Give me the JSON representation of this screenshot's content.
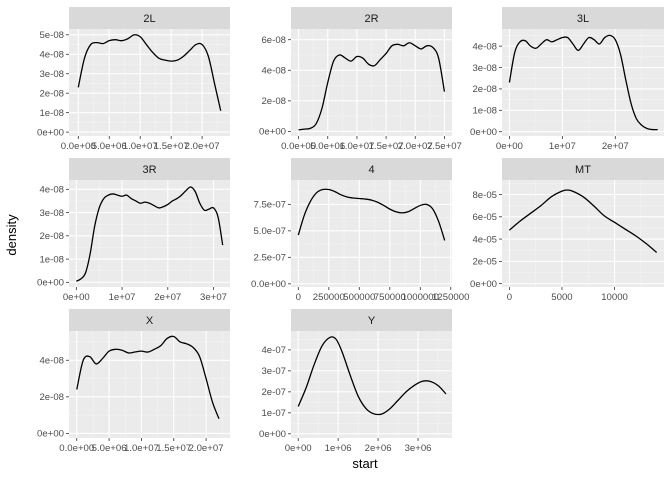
{
  "chart_data": {
    "type": "line",
    "xlabel": "start",
    "ylabel": "density",
    "panels": [
      {
        "name": "2L",
        "xlim": [
          -1500000,
          24500000
        ],
        "ylim": [
          -2e-09,
          5.3e-08
        ],
        "x_ticks": [
          0,
          5000000,
          10000000,
          15000000,
          20000000
        ],
        "x_tick_labels": [
          "0.0e+00",
          "5.0e+06",
          "1.0e+07",
          "1.5e+07",
          "2.0e+07"
        ],
        "y_ticks": [
          0,
          1e-08,
          2e-08,
          3e-08,
          4e-08,
          5e-08
        ],
        "y_tick_labels": [
          "0e+00",
          "1e-08",
          "2e-08",
          "3e-08",
          "4e-08",
          "5e-08"
        ],
        "x": [
          0,
          1000000,
          2000000,
          3000000,
          4000000,
          5000000,
          6000000,
          7000000,
          8000000,
          9000000,
          10000000,
          11000000,
          12000000,
          13000000,
          14000000,
          15000000,
          16000000,
          17000000,
          18000000,
          19000000,
          20000000,
          21000000,
          22000000,
          23000000
        ],
        "y": [
          2.3e-08,
          3.8e-08,
          4.5e-08,
          4.6e-08,
          4.55e-08,
          4.7e-08,
          4.75e-08,
          4.7e-08,
          4.8e-08,
          5e-08,
          4.9e-08,
          4.5e-08,
          4.1e-08,
          3.8e-08,
          3.7e-08,
          3.65e-08,
          3.7e-08,
          3.9e-08,
          4.2e-08,
          4.5e-08,
          4.5e-08,
          3.9e-08,
          2.5e-08,
          1.1e-08
        ]
      },
      {
        "name": "2R",
        "xlim": [
          -1300000,
          26300000
        ],
        "ylim": [
          -3e-09,
          6.7e-08
        ],
        "x_ticks": [
          0,
          5000000,
          10000000,
          15000000,
          20000000,
          25000000
        ],
        "x_tick_labels": [
          "0.0e+00",
          "5.0e+06",
          "1.0e+07",
          "1.5e+07",
          "2.0e+07",
          "2.5e+07"
        ],
        "y_ticks": [
          0,
          2e-08,
          4e-08,
          6e-08
        ],
        "y_tick_labels": [
          "0e+00",
          "2e-08",
          "4e-08",
          "6e-08"
        ],
        "x": [
          0,
          1000000,
          2000000,
          3000000,
          4000000,
          5000000,
          6000000,
          7000000,
          8000000,
          9000000,
          10000000,
          11000000,
          12000000,
          13000000,
          14000000,
          15000000,
          16000000,
          17000000,
          18000000,
          19000000,
          20000000,
          21000000,
          22000000,
          23000000,
          24000000,
          25000000
        ],
        "y": [
          1e-09,
          1.5e-09,
          2e-09,
          5e-09,
          1.5e-08,
          3.2e-08,
          4.6e-08,
          5e-08,
          4.8e-08,
          4.6e-08,
          4.9e-08,
          4.8e-08,
          4.4e-08,
          4.3e-08,
          4.7e-08,
          5.1e-08,
          5.6e-08,
          5.7e-08,
          5.6e-08,
          5.8e-08,
          5.6e-08,
          5.4e-08,
          5.6e-08,
          5.5e-08,
          4.8e-08,
          2.6e-08
        ]
      },
      {
        "name": "3L",
        "xlim": [
          -1400000,
          29200000
        ],
        "ylim": [
          -2e-09,
          4.8e-08
        ],
        "x_ticks": [
          0,
          10000000,
          20000000
        ],
        "x_tick_labels": [
          "0e+00",
          "1e+07",
          "2e+07"
        ],
        "y_ticks": [
          0,
          1e-08,
          2e-08,
          3e-08,
          4e-08
        ],
        "y_tick_labels": [
          "0e+00",
          "1e-08",
          "2e-08",
          "3e-08",
          "4e-08"
        ],
        "x": [
          0,
          1000000,
          2000000,
          3000000,
          4000000,
          5000000,
          6000000,
          7000000,
          8000000,
          9000000,
          10000000,
          11000000,
          12000000,
          13000000,
          14000000,
          15000000,
          16000000,
          17000000,
          18000000,
          19000000,
          20000000,
          21000000,
          22000000,
          23000000,
          24000000,
          25000000,
          26000000,
          27000000,
          28000000
        ],
        "y": [
          2.3e-08,
          3.7e-08,
          4.2e-08,
          4.25e-08,
          4e-08,
          3.9e-08,
          4.1e-08,
          4.3e-08,
          4.2e-08,
          4.3e-08,
          4.4e-08,
          4.4e-08,
          4.1e-08,
          3.8e-08,
          4.1e-08,
          4.4e-08,
          4.3e-08,
          4.1e-08,
          4.4e-08,
          4.5e-08,
          4.3e-08,
          3.6e-08,
          2.4e-08,
          1.3e-08,
          6e-09,
          3e-09,
          1.5e-09,
          1e-09,
          1e-09
        ]
      },
      {
        "name": "3R",
        "xlim": [
          -1600000,
          33600000
        ],
        "ylim": [
          -2e-09,
          4.4e-08
        ],
        "x_ticks": [
          0,
          10000000,
          20000000,
          30000000
        ],
        "x_tick_labels": [
          "0e+00",
          "1e+07",
          "2e+07",
          "3e+07"
        ],
        "y_ticks": [
          0,
          1e-08,
          2e-08,
          3e-08,
          4e-08
        ],
        "y_tick_labels": [
          "0e+00",
          "1e-08",
          "2e-08",
          "3e-08",
          "4e-08"
        ],
        "x": [
          0,
          1000000,
          2000000,
          3000000,
          4000000,
          5000000,
          6000000,
          7000000,
          8000000,
          9000000,
          10000000,
          11000000,
          12000000,
          13000000,
          14000000,
          15000000,
          16000000,
          17000000,
          18000000,
          19000000,
          20000000,
          21000000,
          22000000,
          23000000,
          24000000,
          25000000,
          26000000,
          27000000,
          28000000,
          29000000,
          30000000,
          31000000,
          32000000
        ],
        "y": [
          5e-10,
          1.5e-09,
          4e-09,
          1.2e-08,
          2.4e-08,
          3.2e-08,
          3.6e-08,
          3.75e-08,
          3.8e-08,
          3.75e-08,
          3.7e-08,
          3.75e-08,
          3.6e-08,
          3.5e-08,
          3.4e-08,
          3.45e-08,
          3.4e-08,
          3.3e-08,
          3.2e-08,
          3.25e-08,
          3.35e-08,
          3.5e-08,
          3.6e-08,
          3.75e-08,
          3.95e-08,
          4.1e-08,
          3.9e-08,
          3.4e-08,
          3.1e-08,
          3.15e-08,
          3.2e-08,
          2.8e-08,
          1.6e-08
        ]
      },
      {
        "name": "4",
        "xlim": [
          -60000,
          1260000
        ],
        "ylim": [
          -3e-08,
          9.8e-07
        ],
        "x_ticks": [
          0,
          250000,
          500000,
          750000,
          1000000,
          1250000
        ],
        "x_tick_labels": [
          "0",
          "250000",
          "500000",
          "750000",
          "1000000",
          "1250000"
        ],
        "y_ticks": [
          0,
          2.5e-07,
          5e-07,
          7.5e-07
        ],
        "y_tick_labels": [
          "0.0e+00",
          "2.5e-07",
          "5.0e-07",
          "7.5e-07"
        ],
        "x": [
          0,
          50000,
          100000,
          150000,
          200000,
          250000,
          300000,
          350000,
          400000,
          450000,
          500000,
          550000,
          600000,
          650000,
          700000,
          750000,
          800000,
          850000,
          900000,
          950000,
          1000000,
          1050000,
          1100000,
          1150000,
          1200000
        ],
        "y": [
          4.6e-07,
          6.5e-07,
          7.8e-07,
          8.6e-07,
          8.9e-07,
          8.9e-07,
          8.7e-07,
          8.4e-07,
          8.2e-07,
          8.1e-07,
          8.05e-07,
          8e-07,
          7.9e-07,
          7.7e-07,
          7.4e-07,
          7.05e-07,
          6.8e-07,
          6.7e-07,
          6.8e-07,
          7.1e-07,
          7.4e-07,
          7.5e-07,
          7.1e-07,
          5.9e-07,
          4.1e-07
        ]
      },
      {
        "name": "MT",
        "xlim": [
          -700,
          14700
        ],
        "ylim": [
          -3e-06,
          9.3e-05
        ],
        "x_ticks": [
          0,
          5000,
          10000
        ],
        "x_tick_labels": [
          "0",
          "5000",
          "10000"
        ],
        "y_ticks": [
          0,
          2e-05,
          4e-05,
          6e-05,
          8e-05
        ],
        "y_tick_labels": [
          "0e+00",
          "2e-05",
          "4e-05",
          "6e-05",
          "8e-05"
        ],
        "x": [
          0,
          1000,
          2000,
          3000,
          4000,
          5000,
          5500,
          6000,
          7000,
          8000,
          9000,
          10000,
          11000,
          12000,
          13000,
          14000
        ],
        "y": [
          4.8e-05,
          5.6e-05,
          6.3e-05,
          7e-05,
          7.8e-05,
          8.3e-05,
          8.4e-05,
          8.3e-05,
          7.8e-05,
          7e-05,
          6.1e-05,
          5.5e-05,
          4.9e-05,
          4.3e-05,
          3.6e-05,
          2.8e-05
        ]
      },
      {
        "name": "X",
        "xlim": [
          -1200000,
          23700000
        ],
        "ylim": [
          -2.5e-09,
          5.6e-08
        ],
        "x_ticks": [
          0,
          5000000,
          10000000,
          15000000,
          20000000
        ],
        "x_tick_labels": [
          "0.0e+00",
          "5.0e+06",
          "1.0e+07",
          "1.5e+07",
          "2.0e+07"
        ],
        "y_ticks": [
          0,
          2e-08,
          4e-08
        ],
        "y_tick_labels": [
          "0e+00",
          "2e-08",
          "4e-08"
        ],
        "x": [
          0,
          1000000,
          2000000,
          3000000,
          4000000,
          5000000,
          6000000,
          7000000,
          8000000,
          9000000,
          10000000,
          11000000,
          12000000,
          13000000,
          14000000,
          15000000,
          16000000,
          17000000,
          18000000,
          19000000,
          20000000,
          21000000,
          22000000
        ],
        "y": [
          2.4e-08,
          4e-08,
          4.2e-08,
          3.8e-08,
          4.1e-08,
          4.5e-08,
          4.6e-08,
          4.55e-08,
          4.4e-08,
          4.45e-08,
          4.5e-08,
          4.45e-08,
          4.6e-08,
          4.8e-08,
          5.2e-08,
          5.3e-08,
          5e-08,
          4.9e-08,
          4.7e-08,
          4.2e-08,
          3e-08,
          1.7e-08,
          8e-09
        ]
      },
      {
        "name": "Y",
        "xlim": [
          -180000,
          3850000
        ],
        "ylim": [
          -2e-08,
          4.9e-07
        ],
        "x_ticks": [
          0,
          1000000,
          2000000,
          3000000
        ],
        "x_tick_labels": [
          "0e+00",
          "1e+06",
          "2e+06",
          "3e+06"
        ],
        "y_ticks": [
          0,
          1e-07,
          2e-07,
          3e-07,
          4e-07
        ],
        "y_tick_labels": [
          "0e+00",
          "1e-07",
          "2e-07",
          "3e-07",
          "4e-07"
        ],
        "x": [
          0,
          200000,
          400000,
          600000,
          800000,
          950000,
          1100000,
          1300000,
          1500000,
          1700000,
          1900000,
          2100000,
          2300000,
          2500000,
          2700000,
          2900000,
          3100000,
          3300000,
          3500000,
          3700000
        ],
        "y": [
          1.3e-07,
          2.2e-07,
          3.3e-07,
          4.2e-07,
          4.6e-07,
          4.5e-07,
          3.9e-07,
          2.8e-07,
          1.8e-07,
          1.2e-07,
          9.5e-08,
          9.5e-08,
          1.2e-07,
          1.6e-07,
          2e-07,
          2.3e-07,
          2.5e-07,
          2.5e-07,
          2.3e-07,
          1.9e-07
        ]
      }
    ]
  }
}
